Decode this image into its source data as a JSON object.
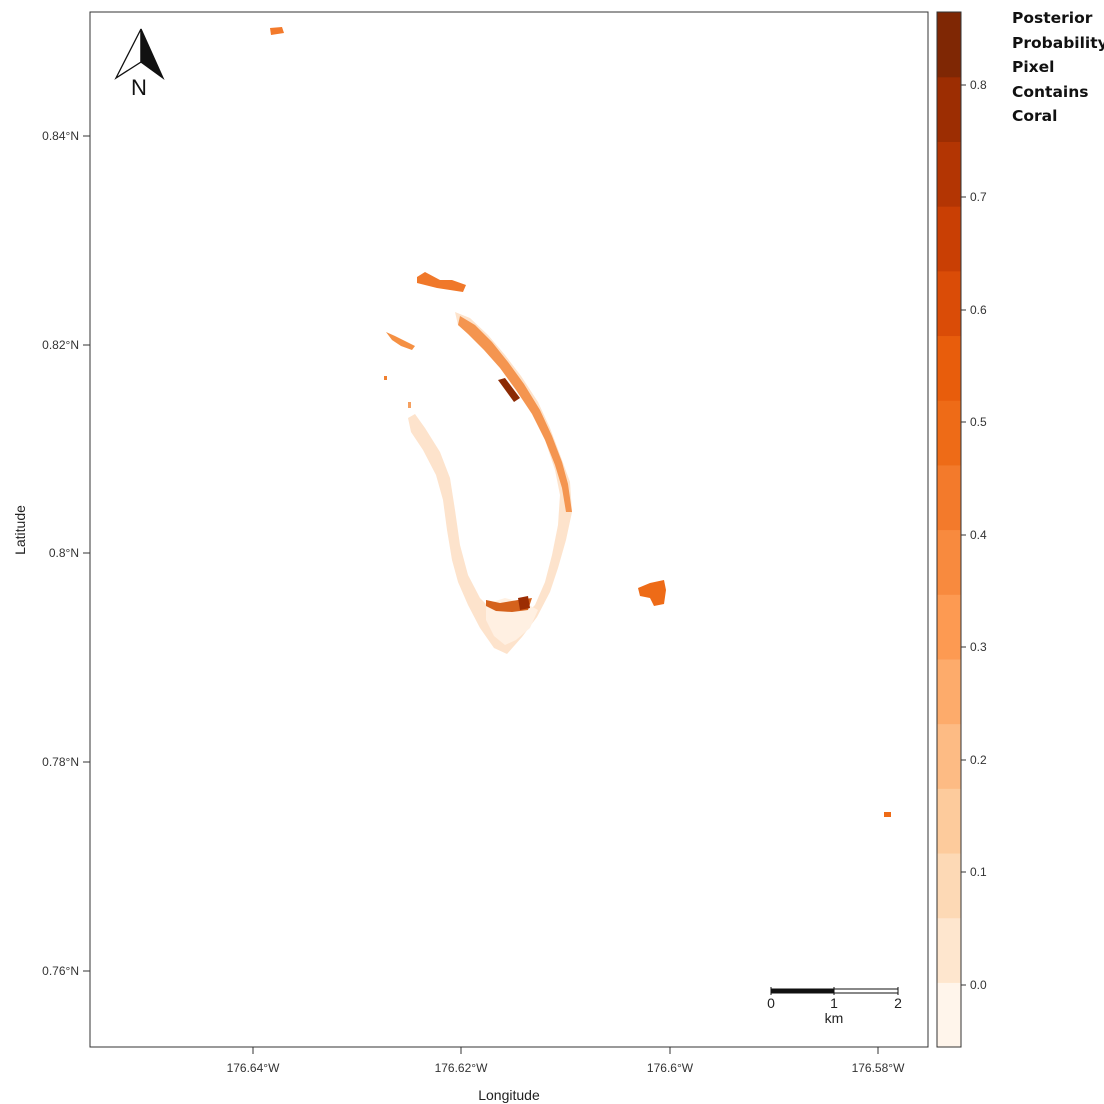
{
  "map": {
    "north_arrow_label": "N",
    "x_axis_title": "Longitude",
    "y_axis_title": "Latitude",
    "x_ticks": [
      "176.64°W",
      "176.62°W",
      "176.6°W",
      "176.58°W"
    ],
    "y_ticks": [
      "0.84°N",
      "0.82°N",
      "0.8°N",
      "0.78°N",
      "0.76°N"
    ],
    "scale_bar": {
      "ticks": [
        "0",
        "1",
        "2"
      ],
      "unit": "km"
    }
  },
  "legend": {
    "title_lines": [
      "Posterior",
      "Probability",
      "Pixel",
      "Contains",
      "Coral"
    ],
    "tick_labels": [
      "0.8",
      "0.7",
      "0.6",
      "0.5",
      "0.4",
      "0.3",
      "0.2",
      "0.1",
      "0.0"
    ],
    "colors": [
      "#fff5eb",
      "#fee6ce",
      "#fdd9b5",
      "#fdcb9c",
      "#fdbb84",
      "#fdab6b",
      "#fd9a52",
      "#f88a3e",
      "#f37a2b",
      "#ee6b17",
      "#e85d0c",
      "#da4c07",
      "#c93f04",
      "#b33503",
      "#9c2d02",
      "#7f2704"
    ]
  }
}
